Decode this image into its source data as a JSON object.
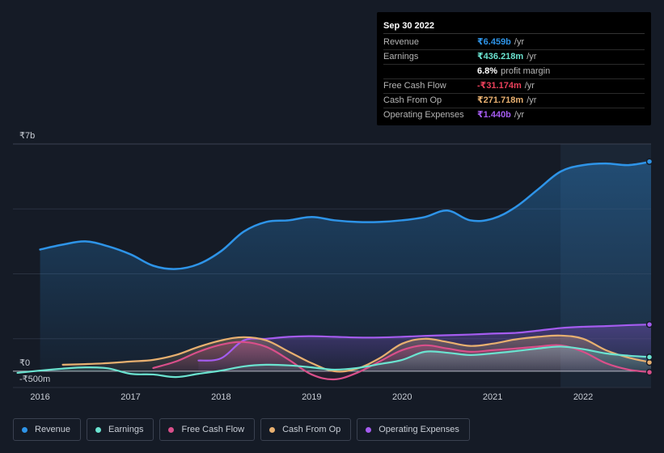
{
  "tooltip": {
    "date": "Sep 30 2022",
    "rows": [
      {
        "label": "Revenue",
        "value": "₹6.459b",
        "unit": "/yr",
        "color": "#2e94e8"
      },
      {
        "label": "Earnings",
        "value": "₹436.218m",
        "unit": "/yr",
        "color": "#6be3d0"
      },
      {
        "label": "",
        "value": "6.8%",
        "unit": "profit margin",
        "color": "#ffffff"
      },
      {
        "label": "Free Cash Flow",
        "value": "-₹31.174m",
        "unit": "/yr",
        "color": "#e8405a"
      },
      {
        "label": "Cash From Op",
        "value": "₹271.718m",
        "unit": "/yr",
        "color": "#e8b070"
      },
      {
        "label": "Operating Expenses",
        "value": "₹1.440b",
        "unit": "/yr",
        "color": "#a55cf0"
      }
    ]
  },
  "legend": [
    {
      "label": "Revenue",
      "color": "#2e94e8"
    },
    {
      "label": "Earnings",
      "color": "#6be3d0"
    },
    {
      "label": "Free Cash Flow",
      "color": "#d94f8a"
    },
    {
      "label": "Cash From Op",
      "color": "#e8b070"
    },
    {
      "label": "Operating Expenses",
      "color": "#a55cf0"
    }
  ],
  "chart_data": {
    "type": "area",
    "title": "",
    "xlabel": "",
    "ylabel": "",
    "y_tick_labels": [
      "₹7b",
      "₹0",
      "-₹500m"
    ],
    "ylim": [
      -500,
      7000
    ],
    "xlim": [
      2015.7,
      2022.75
    ],
    "x_ticks": [
      "2016",
      "2017",
      "2018",
      "2019",
      "2020",
      "2021",
      "2022"
    ],
    "highlight_from": 2021.75,
    "series": [
      {
        "name": "Revenue",
        "color": "#2e94e8",
        "fill": true,
        "points": [
          [
            2016.0,
            3750
          ],
          [
            2016.25,
            3900
          ],
          [
            2016.5,
            4000
          ],
          [
            2016.75,
            3850
          ],
          [
            2017.0,
            3600
          ],
          [
            2017.25,
            3250
          ],
          [
            2017.5,
            3150
          ],
          [
            2017.75,
            3300
          ],
          [
            2018.0,
            3700
          ],
          [
            2018.25,
            4300
          ],
          [
            2018.5,
            4600
          ],
          [
            2018.75,
            4650
          ],
          [
            2019.0,
            4750
          ],
          [
            2019.25,
            4650
          ],
          [
            2019.5,
            4600
          ],
          [
            2019.75,
            4600
          ],
          [
            2020.0,
            4650
          ],
          [
            2020.25,
            4750
          ],
          [
            2020.5,
            4950
          ],
          [
            2020.75,
            4650
          ],
          [
            2021.0,
            4700
          ],
          [
            2021.25,
            5050
          ],
          [
            2021.5,
            5600
          ],
          [
            2021.75,
            6150
          ],
          [
            2022.0,
            6350
          ],
          [
            2022.25,
            6400
          ],
          [
            2022.5,
            6350
          ],
          [
            2022.75,
            6459
          ]
        ]
      },
      {
        "name": "Operating Expenses",
        "color": "#a55cf0",
        "fill": true,
        "points": [
          [
            2017.75,
            330
          ],
          [
            2018.0,
            400
          ],
          [
            2018.25,
            950
          ],
          [
            2018.5,
            1000
          ],
          [
            2018.75,
            1060
          ],
          [
            2019.0,
            1080
          ],
          [
            2019.25,
            1060
          ],
          [
            2019.5,
            1040
          ],
          [
            2019.75,
            1040
          ],
          [
            2020.0,
            1060
          ],
          [
            2020.25,
            1090
          ],
          [
            2020.5,
            1110
          ],
          [
            2020.75,
            1130
          ],
          [
            2021.0,
            1160
          ],
          [
            2021.25,
            1180
          ],
          [
            2021.5,
            1250
          ],
          [
            2021.75,
            1330
          ],
          [
            2022.0,
            1370
          ],
          [
            2022.25,
            1390
          ],
          [
            2022.5,
            1420
          ],
          [
            2022.75,
            1440
          ]
        ]
      },
      {
        "name": "Cash From Op",
        "color": "#e8b070",
        "fill": true,
        "points": [
          [
            2016.25,
            200
          ],
          [
            2016.5,
            220
          ],
          [
            2016.75,
            250
          ],
          [
            2017.0,
            300
          ],
          [
            2017.25,
            350
          ],
          [
            2017.5,
            500
          ],
          [
            2017.75,
            750
          ],
          [
            2018.0,
            950
          ],
          [
            2018.25,
            1050
          ],
          [
            2018.5,
            950
          ],
          [
            2018.75,
            600
          ],
          [
            2019.0,
            250
          ],
          [
            2019.25,
            0
          ],
          [
            2019.5,
            80
          ],
          [
            2019.75,
            400
          ],
          [
            2020.0,
            850
          ],
          [
            2020.25,
            1000
          ],
          [
            2020.5,
            900
          ],
          [
            2020.75,
            780
          ],
          [
            2021.0,
            850
          ],
          [
            2021.25,
            980
          ],
          [
            2021.5,
            1060
          ],
          [
            2021.75,
            1100
          ],
          [
            2022.0,
            1000
          ],
          [
            2022.25,
            650
          ],
          [
            2022.5,
            420
          ],
          [
            2022.75,
            272
          ]
        ]
      },
      {
        "name": "Free Cash Flow",
        "color": "#d94f8a",
        "fill": true,
        "points": [
          [
            2017.25,
            100
          ],
          [
            2017.5,
            300
          ],
          [
            2017.75,
            600
          ],
          [
            2018.0,
            820
          ],
          [
            2018.25,
            900
          ],
          [
            2018.5,
            750
          ],
          [
            2018.75,
            350
          ],
          [
            2019.0,
            -100
          ],
          [
            2019.25,
            -250
          ],
          [
            2019.5,
            -50
          ],
          [
            2019.75,
            300
          ],
          [
            2020.0,
            650
          ],
          [
            2020.25,
            800
          ],
          [
            2020.5,
            700
          ],
          [
            2020.75,
            600
          ],
          [
            2021.0,
            650
          ],
          [
            2021.25,
            700
          ],
          [
            2021.5,
            760
          ],
          [
            2021.75,
            800
          ],
          [
            2022.0,
            600
          ],
          [
            2022.25,
            250
          ],
          [
            2022.5,
            50
          ],
          [
            2022.75,
            -31
          ]
        ]
      },
      {
        "name": "Earnings",
        "color": "#6be3d0",
        "fill": true,
        "points": [
          [
            2015.75,
            -50
          ],
          [
            2016.0,
            20
          ],
          [
            2016.25,
            80
          ],
          [
            2016.5,
            120
          ],
          [
            2016.75,
            90
          ],
          [
            2017.0,
            -80
          ],
          [
            2017.25,
            -100
          ],
          [
            2017.5,
            -180
          ],
          [
            2017.75,
            -80
          ],
          [
            2018.0,
            20
          ],
          [
            2018.25,
            150
          ],
          [
            2018.5,
            200
          ],
          [
            2018.75,
            180
          ],
          [
            2019.0,
            120
          ],
          [
            2019.25,
            50
          ],
          [
            2019.5,
            100
          ],
          [
            2019.75,
            220
          ],
          [
            2020.0,
            350
          ],
          [
            2020.25,
            600
          ],
          [
            2020.5,
            570
          ],
          [
            2020.75,
            500
          ],
          [
            2021.0,
            550
          ],
          [
            2021.25,
            620
          ],
          [
            2021.5,
            700
          ],
          [
            2021.75,
            760
          ],
          [
            2022.0,
            680
          ],
          [
            2022.25,
            550
          ],
          [
            2022.5,
            480
          ],
          [
            2022.75,
            436
          ]
        ]
      }
    ]
  }
}
